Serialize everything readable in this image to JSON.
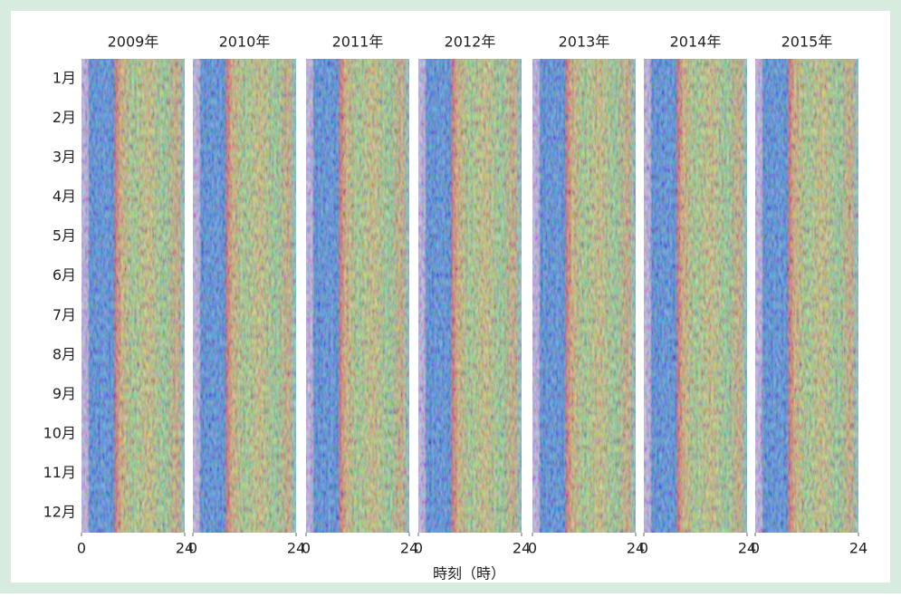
{
  "chart_data": {
    "type": "heatmap",
    "panels": [
      "2009年",
      "2010年",
      "2011年",
      "2012年",
      "2013年",
      "2014年",
      "2015年"
    ],
    "y_categories": [
      "1月",
      "2月",
      "3月",
      "4月",
      "5月",
      "6月",
      "7月",
      "8月",
      "9月",
      "10月",
      "11月",
      "12月"
    ],
    "xlim": [
      0,
      24
    ],
    "xticks": [
      0,
      24
    ],
    "xlabel": "時刻（時）"
  }
}
